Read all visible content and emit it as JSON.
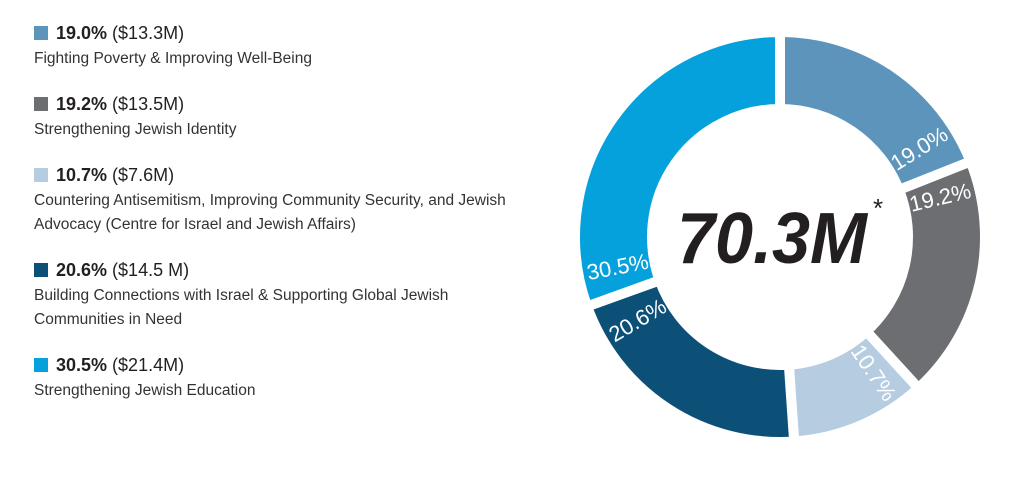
{
  "chart_data": {
    "type": "donut",
    "categories": [
      "Fighting Poverty & Improving Well-Being",
      "Strengthening Jewish Identity",
      "Countering Antisemitism, Improving Community Security, and Jewish Advocacy (Centre for Israel and Jewish Affairs)",
      "Building Connections with Israel & Supporting Global Jewish Communities in Need",
      "Strengthening Jewish Education"
    ],
    "values": [
      19.0,
      19.2,
      10.7,
      20.6,
      30.5
    ],
    "value_labels": [
      "19.0%",
      "19.2%",
      "10.7%",
      "20.6%",
      "30.5%"
    ],
    "amount_labels": [
      "($13.3M)",
      "($13.5M)",
      "($7.6M)",
      "($14.5 M)",
      "($21.4M)"
    ],
    "colors": [
      "#5d94bc",
      "#6d6e71",
      "#b6cde1",
      "#0c5078",
      "#05a1dd"
    ],
    "center_label": "70.3M",
    "center_note": "*"
  }
}
